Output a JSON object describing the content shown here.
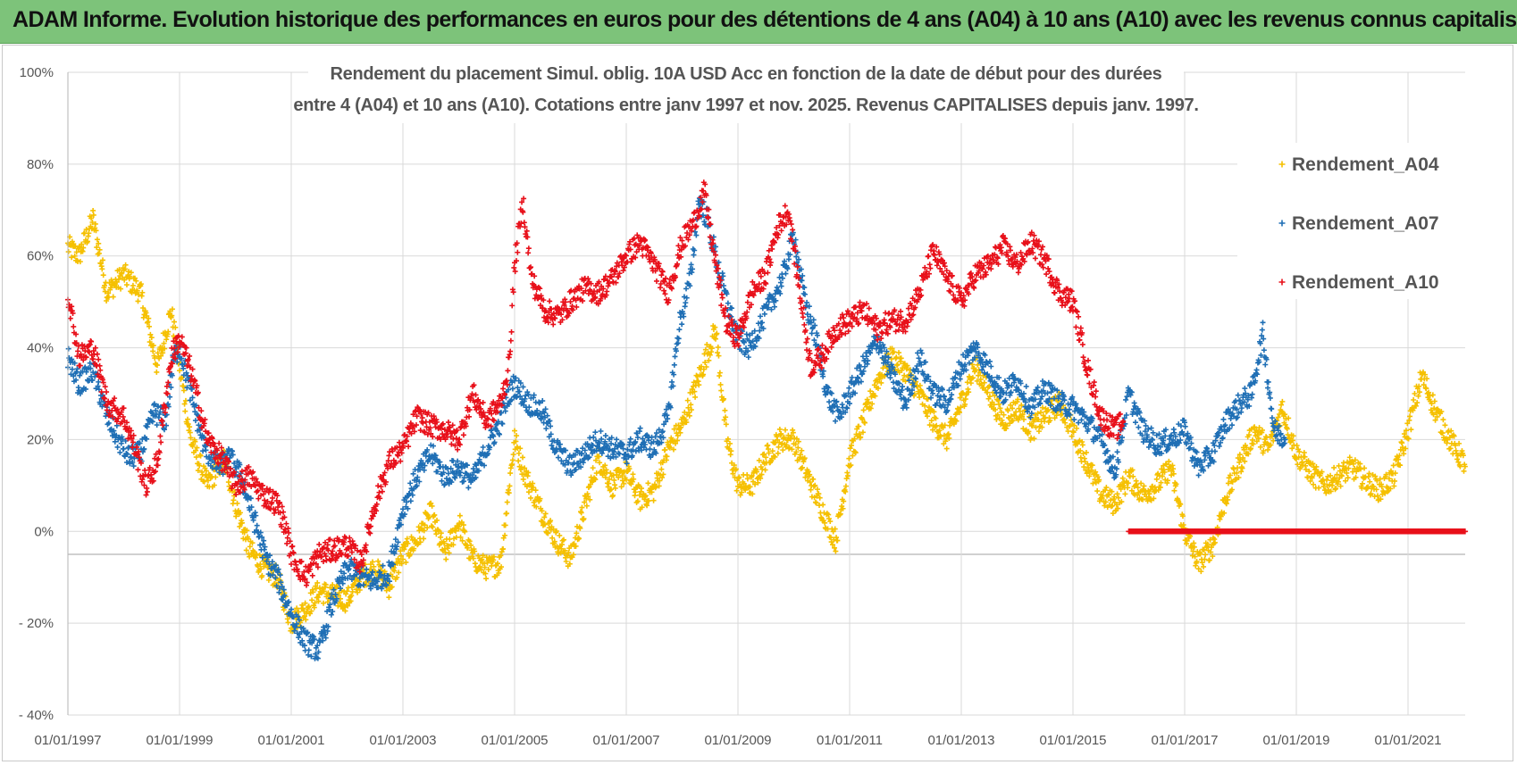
{
  "banner": {
    "title": "ADAM Informe. Evolution historique des performances en euros pour des détentions de 4 ans (A04) à 10 ans (A10) avec les revenus connus capitalisés"
  },
  "colors": {
    "banner": "#7dc37a",
    "a04": "#f5c000",
    "a07": "#1f6fb5",
    "a10": "#e8101a",
    "grid": "#d9d9d9"
  },
  "chart_data": {
    "type": "scatter",
    "title_line1": "Rendement du placement Simul. oblig. 10A USD Acc en fonction de la date de début pour des durées",
    "title_line2": "entre 4 (A04) et 10 ans (A10). Cotations entre janv 1997 et nov. 2025. Revenus CAPITALISES depuis janv. 1997.",
    "xlabel": "",
    "ylabel": "",
    "ylim": [
      -40,
      100
    ],
    "y_ticks": [
      "100%",
      "80%",
      "60%",
      "40%",
      "20%",
      "0%",
      "- 20%",
      "- 40%"
    ],
    "x_ticks": [
      "01/01/1997",
      "01/01/1999",
      "01/01/2001",
      "01/01/2003",
      "01/01/2005",
      "01/01/2007",
      "01/01/2009",
      "01/01/2011",
      "01/01/2013",
      "01/01/2015",
      "01/01/2017",
      "01/01/2019",
      "01/01/2021"
    ],
    "xlim": [
      1997.0,
      2022.3
    ],
    "grid": true,
    "legend_position": "right",
    "series": [
      {
        "name": "Rendement_A04",
        "x": [
          1997.0,
          1997.2,
          1997.45,
          1997.7,
          1998.0,
          1998.3,
          1998.6,
          1998.85,
          1999.0,
          1999.2,
          1999.5,
          1999.8,
          2000.0,
          2000.25,
          2000.5,
          2000.75,
          2000.9,
          2001.0,
          2001.25,
          2001.5,
          2001.75,
          2002.0,
          2002.25,
          2002.5,
          2002.75,
          2003.0,
          2003.25,
          2003.5,
          2003.75,
          2004.0,
          2004.25,
          2004.5,
          2004.75,
          2004.9,
          2005.0,
          2005.2,
          2005.5,
          2005.75,
          2006.0,
          2006.25,
          2006.5,
          2006.75,
          2007.0,
          2007.25,
          2007.5,
          2007.75,
          2008.0,
          2008.2,
          2008.4,
          2008.6,
          2008.8,
          2009.0,
          2009.25,
          2009.5,
          2009.75,
          2010.0,
          2010.25,
          2010.5,
          2010.75,
          2011.0,
          2011.25,
          2011.5,
          2011.75,
          2012.0,
          2012.25,
          2012.5,
          2012.75,
          2013.0,
          2013.25,
          2013.5,
          2013.75,
          2014.0,
          2014.25,
          2014.5,
          2014.75,
          2015.0,
          2015.25,
          2015.5,
          2015.75,
          2016.0,
          2016.25,
          2016.5,
          2016.75,
          2017.0,
          2017.25,
          2017.5,
          2017.75,
          2018.0,
          2018.25,
          2018.5,
          2018.75,
          2019.0,
          2019.25,
          2019.5,
          2019.75,
          2020.0,
          2020.25,
          2020.5,
          2020.75,
          2021.0,
          2021.25,
          2021.5,
          2021.75,
          2022.0,
          2022.2
        ],
        "y": [
          62,
          60,
          68,
          52,
          56,
          52,
          36,
          48,
          36,
          20,
          10,
          16,
          6,
          -4,
          -8,
          -10,
          -16,
          -20,
          -17,
          -13,
          -14,
          -15,
          -10,
          -8,
          -12,
          -5,
          -2,
          4,
          -5,
          2,
          -6,
          -8,
          -7,
          10,
          20,
          12,
          4,
          -2,
          -6,
          5,
          16,
          10,
          13,
          7,
          9,
          18,
          23,
          30,
          37,
          44,
          20,
          10,
          10,
          16,
          20,
          20,
          12,
          5,
          -2,
          16,
          24,
          33,
          38,
          35,
          30,
          24,
          20,
          28,
          36,
          30,
          24,
          27,
          22,
          25,
          28,
          22,
          15,
          8,
          6,
          12,
          8,
          10,
          14,
          0,
          -7,
          -3,
          8,
          15,
          22,
          18,
          27,
          17,
          13,
          10,
          12,
          14,
          11,
          9,
          12,
          22,
          34,
          26,
          20,
          15,
          14
        ]
      },
      {
        "name": "Rendement_A07",
        "x": [
          1997.0,
          1997.2,
          1997.45,
          1997.7,
          1997.9,
          1998.1,
          1998.3,
          1998.55,
          1998.75,
          1998.9,
          1999.0,
          1999.2,
          1999.45,
          1999.7,
          1999.9,
          2000.1,
          2000.3,
          2000.55,
          2000.75,
          2000.9,
          2001.0,
          2001.25,
          2001.5,
          2001.75,
          2002.0,
          2002.25,
          2002.5,
          2002.75,
          2003.0,
          2003.25,
          2003.5,
          2003.75,
          2004.0,
          2004.25,
          2004.5,
          2004.75,
          2004.9,
          2005.0,
          2005.25,
          2005.5,
          2005.75,
          2006.0,
          2006.25,
          2006.5,
          2006.75,
          2007.0,
          2007.25,
          2007.5,
          2007.75,
          2007.95,
          2008.15,
          2008.3,
          2008.45,
          2008.6,
          2008.8,
          2009.0,
          2009.2,
          2009.4,
          2009.6,
          2009.8,
          2010.0,
          2010.2,
          2010.4,
          2010.6,
          2010.8,
          2011.0,
          2011.25,
          2011.5,
          2011.75,
          2012.0,
          2012.25,
          2012.5,
          2012.75,
          2013.0,
          2013.25,
          2013.5,
          2013.75,
          2014.0,
          2014.25,
          2014.5,
          2014.75,
          2015.0,
          2015.25,
          2015.5,
          2015.75,
          2016.0,
          2016.25,
          2016.5,
          2016.75,
          2017.0,
          2017.25,
          2017.5,
          2017.75,
          2018.0,
          2018.2,
          2018.4,
          2018.6,
          2018.8
        ],
        "y": [
          38,
          32,
          35,
          25,
          20,
          16,
          17,
          26,
          24,
          38,
          40,
          30,
          18,
          14,
          16,
          12,
          4,
          -6,
          -10,
          -15,
          -18,
          -24,
          -26,
          -15,
          -8,
          -10,
          -11,
          -9,
          5,
          12,
          17,
          12,
          14,
          11,
          18,
          24,
          30,
          32,
          28,
          26,
          18,
          14,
          17,
          20,
          18,
          17,
          20,
          18,
          25,
          45,
          55,
          72,
          68,
          60,
          50,
          42,
          40,
          45,
          50,
          55,
          65,
          50,
          42,
          30,
          25,
          30,
          36,
          42,
          34,
          28,
          38,
          30,
          28,
          36,
          40,
          35,
          30,
          33,
          27,
          31,
          28,
          27,
          24,
          20,
          13,
          30,
          22,
          19,
          20,
          22,
          14,
          17,
          24,
          28,
          30,
          43,
          22,
          20
        ]
      },
      {
        "name": "Rendement_A10",
        "x": [
          1997.0,
          1997.2,
          1997.45,
          1997.7,
          1998.0,
          1998.2,
          1998.4,
          1998.6,
          1998.85,
          1999.0,
          1999.2,
          1999.5,
          1999.75,
          2000.0,
          2000.25,
          2000.5,
          2000.75,
          2000.9,
          2001.0,
          2001.25,
          2001.5,
          2001.75,
          2002.0,
          2002.25,
          2002.5,
          2002.75,
          2003.0,
          2003.25,
          2003.5,
          2003.75,
          2004.0,
          2004.25,
          2004.5,
          2004.75,
          2004.9,
          2005.0,
          2005.15,
          2005.3,
          2005.55,
          2005.8,
          2006.0,
          2006.25,
          2006.5,
          2006.75,
          2007.0,
          2007.25,
          2007.5,
          2007.75,
          2008.0,
          2008.2,
          2008.4,
          2008.6,
          2008.8,
          2009.0,
          2009.25,
          2009.5,
          2009.7,
          2009.9,
          2010.1,
          2010.3,
          2010.5,
          2010.75,
          2011.0,
          2011.25,
          2011.5,
          2011.75,
          2012.0,
          2012.25,
          2012.5,
          2012.75,
          2013.0,
          2013.25,
          2013.5,
          2013.75,
          2014.0,
          2014.25,
          2014.5,
          2014.75,
          2015.0,
          2015.25,
          2015.5,
          2015.75,
          2015.9
        ],
        "y": [
          52,
          38,
          40,
          28,
          25,
          18,
          10,
          15,
          38,
          42,
          35,
          20,
          16,
          10,
          12,
          8,
          6,
          1,
          -5,
          -10,
          -5,
          -4,
          -3,
          -7,
          6,
          15,
          18,
          25,
          23,
          22,
          20,
          30,
          24,
          28,
          36,
          58,
          72,
          55,
          48,
          47,
          50,
          53,
          52,
          55,
          60,
          63,
          58,
          52,
          63,
          67,
          74,
          58,
          45,
          42,
          52,
          56,
          66,
          70,
          53,
          36,
          38,
          44,
          46,
          48,
          44,
          46,
          46,
          52,
          61,
          55,
          50,
          56,
          58,
          62,
          58,
          63,
          59,
          52,
          50,
          36,
          25,
          22,
          24
        ]
      },
      {
        "name": "",
        "x": [
          2016.0,
          2022.3
        ],
        "y": [
          0,
          0
        ]
      }
    ]
  },
  "legend": {
    "items": [
      {
        "label": "Rendement_A04"
      },
      {
        "label": "Rendement_A07"
      },
      {
        "label": "Rendement_A10"
      }
    ]
  }
}
